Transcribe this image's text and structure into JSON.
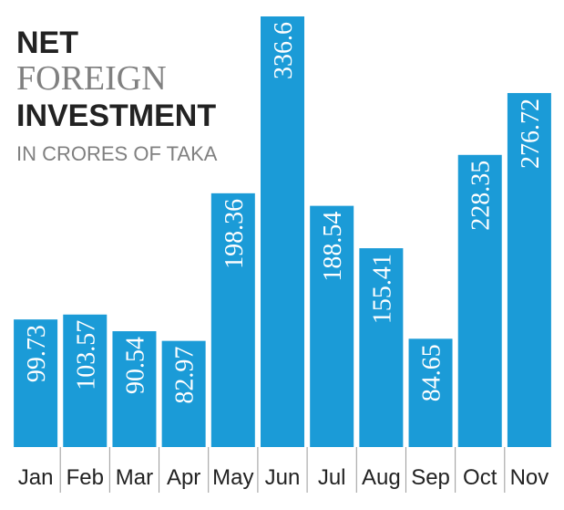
{
  "chart_data": {
    "type": "bar",
    "title_lines": [
      "NET",
      "FOREIGN",
      "INVESTMENT"
    ],
    "subtitle": "IN CRORES OF TAKA",
    "categories": [
      "Jan",
      "Feb",
      "Mar",
      "Apr",
      "May",
      "Jun",
      "Jul",
      "Aug",
      "Sep",
      "Oct",
      "Nov"
    ],
    "values": [
      99.73,
      103.57,
      90.54,
      82.97,
      198.36,
      336.6,
      188.54,
      155.41,
      84.65,
      228.35,
      276.72
    ],
    "color": "#1b9bd7"
  }
}
